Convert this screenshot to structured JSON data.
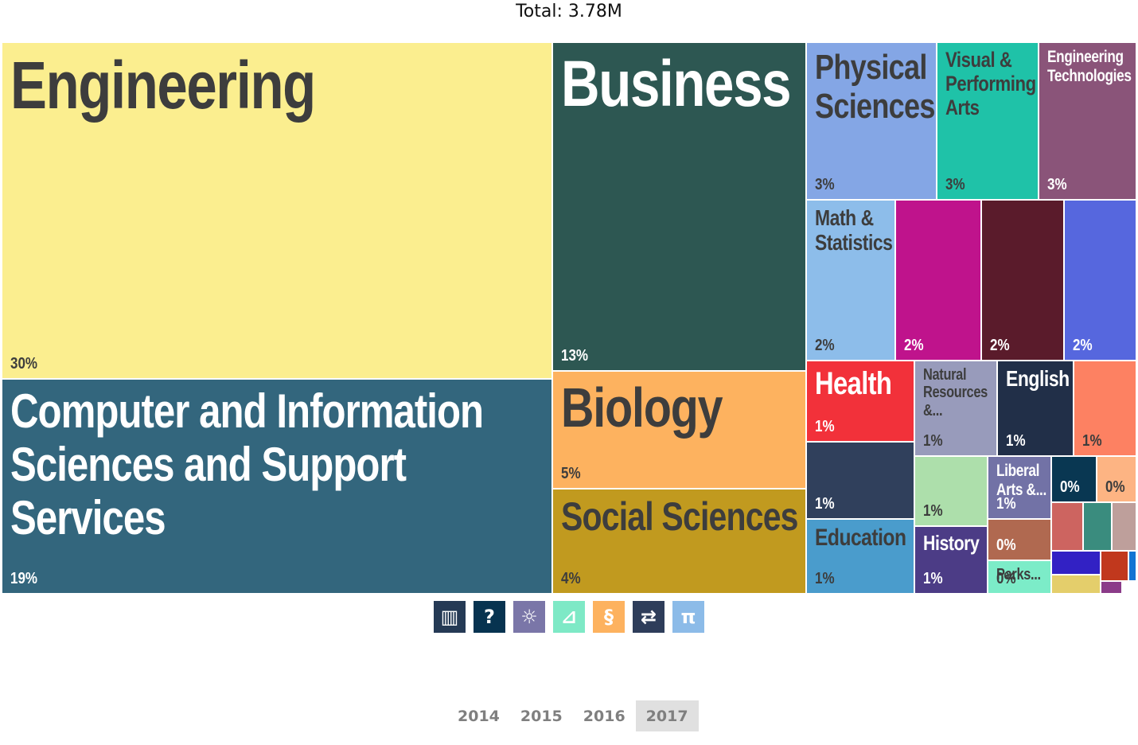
{
  "header": {
    "total_label": "Total: 3.78M"
  },
  "chart_data": {
    "type": "treemap",
    "total": "3.78M",
    "tiles": [
      {
        "label": "Engineering",
        "pct": "30%",
        "color": "#fbee8f",
        "text": "#3d3d3d"
      },
      {
        "label": "Computer and Information Sciences and Support Services",
        "pct": "19%",
        "color": "#33667d",
        "text": "#ffffff"
      },
      {
        "label": "Business",
        "pct": "13%",
        "color": "#2d5752",
        "text": "#ffffff"
      },
      {
        "label": "Biology",
        "pct": "5%",
        "color": "#fdb25f",
        "text": "#3d3d3d"
      },
      {
        "label": "Social Sciences",
        "pct": "4%",
        "color": "#c19a1f",
        "text": "#3d3d3d"
      },
      {
        "label": "Physical Sciences",
        "pct": "3%",
        "color": "#84a6e5",
        "text": "#3d3d3d"
      },
      {
        "label": "Visual & Performing Arts",
        "pct": "3%",
        "color": "#1fc2a8",
        "text": "#3d3d3d"
      },
      {
        "label": "Engineering Technologies",
        "pct": "3%",
        "color": "#8a5479",
        "text": "#ffffff"
      },
      {
        "label": "Math & Statistics",
        "pct": "2%",
        "color": "#8dbdea",
        "text": "#3d3d3d"
      },
      {
        "label": "",
        "pct": "2%",
        "color": "#bf138c",
        "text": "#ffffff"
      },
      {
        "label": "",
        "pct": "2%",
        "color": "#5a1b2b",
        "text": "#ffffff"
      },
      {
        "label": "",
        "pct": "2%",
        "color": "#5667de",
        "text": "#ffffff"
      },
      {
        "label": "Health",
        "pct": "1%",
        "color": "#f2313a",
        "text": "#ffffff"
      },
      {
        "label": "Natural Resources &...",
        "pct": "1%",
        "color": "#989bbb",
        "text": "#3d3d3d"
      },
      {
        "label": "English",
        "pct": "1%",
        "color": "#212f48",
        "text": "#ffffff"
      },
      {
        "label": "",
        "pct": "1%",
        "color": "#fd8162",
        "text": "#3d3d3d"
      },
      {
        "label": "",
        "pct": "1%",
        "color": "#30405c",
        "text": "#ffffff"
      },
      {
        "label": "Education",
        "pct": "1%",
        "color": "#4a9ccc",
        "text": "#3d3d3d"
      },
      {
        "label": "",
        "pct": "1%",
        "color": "#addfab",
        "text": "#3d3d3d"
      },
      {
        "label": "Liberal Arts &...",
        "pct": "1%",
        "color": "#7272a6",
        "text": "#ffffff"
      },
      {
        "label": "",
        "pct": "0%",
        "color": "#093752",
        "text": "#ffffff"
      },
      {
        "label": "",
        "pct": "0%",
        "color": "#fdb483",
        "text": "#3d3d3d"
      },
      {
        "label": "History",
        "pct": "1%",
        "color": "#4c3c86",
        "text": "#ffffff"
      },
      {
        "label": "",
        "pct": "0%",
        "color": "#b06950",
        "text": "#ffffff"
      },
      {
        "label": "Parks...",
        "pct": "0%",
        "color": "#7cecc8",
        "text": "#3d3d3d"
      },
      {
        "label": "",
        "pct": "",
        "color": "#cd6460",
        "text": "#ffffff"
      },
      {
        "label": "",
        "pct": "",
        "color": "#3a8c7e",
        "text": "#ffffff"
      },
      {
        "label": "",
        "pct": "",
        "color": "#be9f9b",
        "text": "#ffffff"
      },
      {
        "label": "",
        "pct": "",
        "color": "#3221c4",
        "text": "#ffffff"
      },
      {
        "label": "",
        "pct": "",
        "color": "#c1381d",
        "text": "#ffffff"
      },
      {
        "label": "",
        "pct": "",
        "color": "#1274d3",
        "text": "#ffffff"
      },
      {
        "label": "",
        "pct": "",
        "color": "#e4ce6b",
        "text": "#ffffff"
      },
      {
        "label": "",
        "pct": "",
        "color": "#8b3b89",
        "text": "#ffffff"
      }
    ]
  },
  "icon_bar": [
    {
      "icon": "book-icon",
      "glyph": "▥",
      "color": "#253a55"
    },
    {
      "icon": "question-icon",
      "glyph": "?",
      "color": "#073350"
    },
    {
      "icon": "sun-icon",
      "glyph": "☼",
      "color": "#7a76a8"
    },
    {
      "icon": "shoe-icon",
      "glyph": "⊿",
      "color": "#7ee9c6"
    },
    {
      "icon": "dna-icon",
      "glyph": "§",
      "color": "#fdb25f"
    },
    {
      "icon": "arrows-icon",
      "glyph": "⇄",
      "color": "#2e3d5a"
    },
    {
      "icon": "pi-icon",
      "glyph": "π",
      "color": "#8cbbe8"
    }
  ],
  "years": [
    {
      "label": "2014",
      "active": false
    },
    {
      "label": "2015",
      "active": false
    },
    {
      "label": "2016",
      "active": false
    },
    {
      "label": "2017",
      "active": true
    }
  ]
}
